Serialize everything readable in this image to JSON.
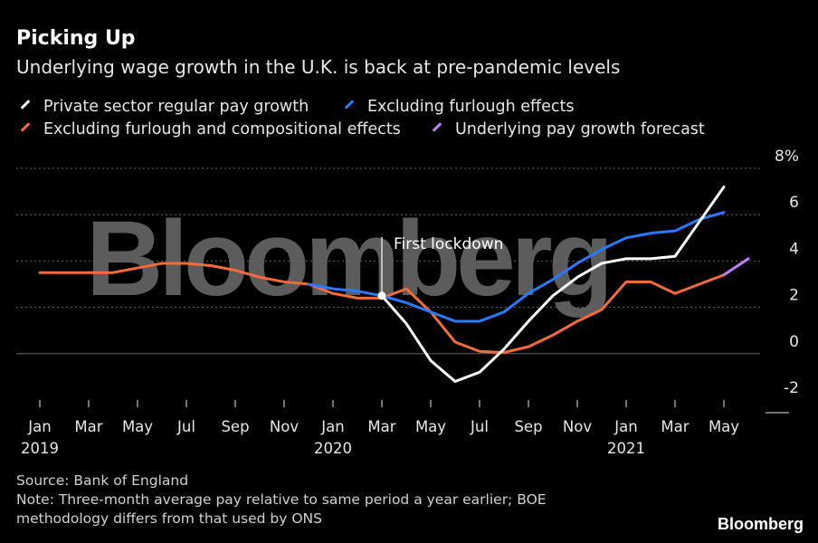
{
  "header": {
    "title": "Picking Up",
    "subtitle": "Underlying wage growth in the U.K. is back at pre-pandemic levels"
  },
  "colors": {
    "background": "#000000",
    "grid": "#666666",
    "annotation": "#ffffff"
  },
  "chart_data": {
    "type": "line",
    "title": "Picking Up",
    "subtitle": "Underlying wage growth in the U.K. is back at pre-pandemic levels",
    "y_unit": "%",
    "ylim": [
      -2,
      8
    ],
    "y_ticks": [
      {
        "value": 8,
        "label": "8%"
      },
      {
        "value": 6,
        "label": "6"
      },
      {
        "value": 4,
        "label": "4"
      },
      {
        "value": 2,
        "label": "2"
      },
      {
        "value": 0,
        "label": "0"
      },
      {
        "value": -2,
        "label": "-2"
      }
    ],
    "x_ticks": [
      {
        "date": "2019-01",
        "month": "Jan",
        "year": "2019"
      },
      {
        "date": "2019-03",
        "month": "Mar",
        "year": ""
      },
      {
        "date": "2019-05",
        "month": "May",
        "year": ""
      },
      {
        "date": "2019-07",
        "month": "Jul",
        "year": ""
      },
      {
        "date": "2019-09",
        "month": "Sep",
        "year": ""
      },
      {
        "date": "2019-11",
        "month": "Nov",
        "year": ""
      },
      {
        "date": "2020-01",
        "month": "Jan",
        "year": "2020"
      },
      {
        "date": "2020-03",
        "month": "Mar",
        "year": ""
      },
      {
        "date": "2020-05",
        "month": "May",
        "year": ""
      },
      {
        "date": "2020-07",
        "month": "Jul",
        "year": ""
      },
      {
        "date": "2020-09",
        "month": "Sep",
        "year": ""
      },
      {
        "date": "2020-11",
        "month": "Nov",
        "year": ""
      },
      {
        "date": "2021-01",
        "month": "Jan",
        "year": "2021"
      },
      {
        "date": "2021-03",
        "month": "Mar",
        "year": ""
      },
      {
        "date": "2021-05",
        "month": "May",
        "year": ""
      }
    ],
    "grid": true,
    "legend_position": "top",
    "series": [
      {
        "key": "orange",
        "name": "Excluding furlough and compositional effects",
        "color": "#f26b3a",
        "points": [
          [
            "2019-01",
            3.5
          ],
          [
            "2019-02",
            3.5
          ],
          [
            "2019-03",
            3.5
          ],
          [
            "2019-04",
            3.5
          ],
          [
            "2019-05",
            3.7
          ],
          [
            "2019-06",
            3.9
          ],
          [
            "2019-07",
            3.9
          ],
          [
            "2019-08",
            3.8
          ],
          [
            "2019-09",
            3.6
          ],
          [
            "2019-10",
            3.3
          ],
          [
            "2019-11",
            3.1
          ],
          [
            "2019-12",
            3.0
          ],
          [
            "2020-01",
            2.6
          ],
          [
            "2020-02",
            2.4
          ],
          [
            "2020-03",
            2.4
          ],
          [
            "2020-04",
            2.8
          ],
          [
            "2020-05",
            1.8
          ],
          [
            "2020-06",
            0.5
          ],
          [
            "2020-07",
            0.1
          ],
          [
            "2020-08",
            0.05
          ],
          [
            "2020-09",
            0.3
          ],
          [
            "2020-10",
            0.8
          ],
          [
            "2020-11",
            1.4
          ],
          [
            "2020-12",
            1.9
          ],
          [
            "2021-01",
            3.1
          ],
          [
            "2021-02",
            3.1
          ],
          [
            "2021-03",
            2.6
          ],
          [
            "2021-04",
            3.0
          ],
          [
            "2021-05",
            3.4
          ]
        ]
      },
      {
        "key": "blue",
        "name": "Excluding furlough effects",
        "color": "#2979ff",
        "points": [
          [
            "2019-12",
            3.0
          ],
          [
            "2020-01",
            2.8
          ],
          [
            "2020-02",
            2.7
          ],
          [
            "2020-03",
            2.5
          ],
          [
            "2020-04",
            2.2
          ],
          [
            "2020-05",
            1.8
          ],
          [
            "2020-06",
            1.4
          ],
          [
            "2020-07",
            1.4
          ],
          [
            "2020-08",
            1.8
          ],
          [
            "2020-09",
            2.6
          ],
          [
            "2020-10",
            3.2
          ],
          [
            "2020-11",
            3.9
          ],
          [
            "2020-12",
            4.5
          ],
          [
            "2021-01",
            5.0
          ],
          [
            "2021-02",
            5.2
          ],
          [
            "2021-03",
            5.3
          ],
          [
            "2021-04",
            5.8
          ],
          [
            "2021-05",
            6.1
          ]
        ]
      },
      {
        "key": "white",
        "name": "Private sector regular pay growth",
        "color": "#ffffff",
        "points": [
          [
            "2020-03",
            2.5
          ],
          [
            "2020-04",
            1.3
          ],
          [
            "2020-05",
            -0.3
          ],
          [
            "2020-06",
            -1.2
          ],
          [
            "2020-07",
            -0.8
          ],
          [
            "2020-08",
            0.2
          ],
          [
            "2020-09",
            1.4
          ],
          [
            "2020-10",
            2.5
          ],
          [
            "2020-11",
            3.3
          ],
          [
            "2020-12",
            3.9
          ],
          [
            "2021-01",
            4.1
          ],
          [
            "2021-02",
            4.1
          ],
          [
            "2021-03",
            4.2
          ],
          [
            "2021-04",
            5.7
          ],
          [
            "2021-05",
            7.2
          ]
        ]
      },
      {
        "key": "purple",
        "name": "Underlying pay growth forecast",
        "color": "#c27dff",
        "points": [
          [
            "2021-05",
            3.4
          ],
          [
            "2021-06",
            4.1
          ]
        ]
      }
    ],
    "annotations": [
      {
        "text": "First lockdown",
        "date": "2020-03",
        "marker_value": 2.5
      }
    ]
  },
  "legend": [
    {
      "key": "white",
      "label": "Private sector regular pay growth",
      "color": "#ffffff"
    },
    {
      "key": "blue",
      "label": "Excluding furlough effects",
      "color": "#2979ff"
    },
    {
      "key": "orange",
      "label": "Excluding furlough and compositional effects",
      "color": "#f26b3a"
    },
    {
      "key": "purple",
      "label": "Underlying pay growth forecast",
      "color": "#c27dff"
    }
  ],
  "footer": {
    "source": "Source: Bank of England",
    "note_line1": "Note: Three-month average pay relative to same period a year earlier; BOE",
    "note_line2": "methodology differs from that used by ONS",
    "brand": "Bloomberg"
  },
  "watermark": "Bloomberg"
}
